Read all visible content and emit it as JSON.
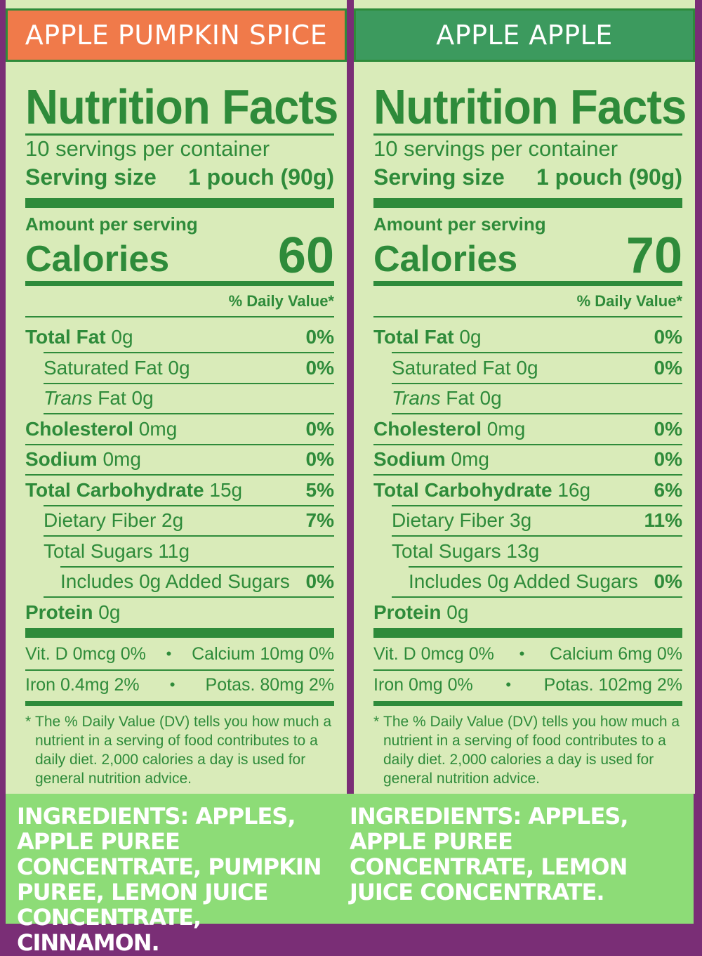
{
  "colors": {
    "background": "#7a2e76",
    "panel": "#d9ebb9",
    "label_green": "#2e8b3a",
    "left_banner": "#f07a4a",
    "right_banner": "#3c9a5e",
    "ingredients_bg": "#8ddc77"
  },
  "left": {
    "banner": "APPLE PUMPKIN SPICE",
    "title": "Nutrition Facts",
    "servings": "10 servings per container",
    "serving_size_label": "Serving size",
    "serving_size_value": "1 pouch (90g)",
    "amount_per_serving": "Amount per serving",
    "calories_label": "Calories",
    "calories_value": "60",
    "dv_header": "% Daily Value*",
    "rows": [
      {
        "bold": "Total Fat",
        "rest": " 0g",
        "pct": "0%"
      },
      {
        "plain": "Saturated Fat 0g",
        "pct": "0%"
      },
      {
        "italic": "Trans",
        "rest": " Fat 0g",
        "pct": ""
      },
      {
        "bold": "Cholesterol",
        "rest": " 0mg",
        "pct": "0%"
      },
      {
        "bold": "Sodium",
        "rest": " 0mg",
        "pct": "0%"
      },
      {
        "bold": "Total Carbohydrate",
        "rest": " 15g",
        "pct": "5%"
      },
      {
        "plain": "Dietary Fiber 2g",
        "pct": "7%"
      },
      {
        "plain": "Total Sugars 11g",
        "pct": ""
      },
      {
        "plain": "Includes 0g Added Sugars",
        "pct": "0%"
      },
      {
        "bold": "Protein",
        "rest": " 0g",
        "pct": ""
      }
    ],
    "vit_row1_left": "Vit. D 0mcg 0%",
    "vit_row1_right": "Calcium 10mg 0%",
    "vit_row2_left": "Iron 0.4mg 2%",
    "vit_row2_right": "Potas. 80mg 2%",
    "bullet": "•",
    "footnote_mark": "*",
    "footnote": "The % Daily Value (DV) tells you how much a nutrient in a serving of food contributes to a daily diet. 2,000 calories a day is used for general nutrition advice.",
    "ingredients": "INGREDIENTS: APPLES, APPLE PUREE CONCENTRATE, PUMPKIN PUREE, LEMON JUICE CONCENTRATE, CINNAMON."
  },
  "right": {
    "banner": "APPLE APPLE",
    "title": "Nutrition Facts",
    "servings": "10 servings per container",
    "serving_size_label": "Serving size",
    "serving_size_value": "1 pouch (90g)",
    "amount_per_serving": "Amount per serving",
    "calories_label": "Calories",
    "calories_value": "70",
    "dv_header": "% Daily Value*",
    "rows": [
      {
        "bold": "Total Fat",
        "rest": " 0g",
        "pct": "0%"
      },
      {
        "plain": "Saturated Fat 0g",
        "pct": "0%"
      },
      {
        "italic": "Trans",
        "rest": " Fat 0g",
        "pct": ""
      },
      {
        "bold": "Cholesterol",
        "rest": " 0mg",
        "pct": "0%"
      },
      {
        "bold": "Sodium",
        "rest": " 0mg",
        "pct": "0%"
      },
      {
        "bold": "Total Carbohydrate",
        "rest": " 16g",
        "pct": "6%"
      },
      {
        "plain": "Dietary Fiber 3g",
        "pct": "11%"
      },
      {
        "plain": "Total Sugars 13g",
        "pct": ""
      },
      {
        "plain": "Includes 0g Added Sugars",
        "pct": "0%"
      },
      {
        "bold": "Protein",
        "rest": " 0g",
        "pct": ""
      }
    ],
    "vit_row1_left": "Vit. D 0mcg 0%",
    "vit_row1_right": "Calcium 6mg 0%",
    "vit_row2_left": "Iron 0mg 0%",
    "vit_row2_right": "Potas. 102mg 2%",
    "bullet": "•",
    "footnote_mark": "*",
    "footnote": "The % Daily Value (DV) tells you how much a nutrient in a serving of food contributes to a daily diet. 2,000 calories a day is used for general nutrition advice.",
    "ingredients": "INGREDIENTS: APPLES, APPLE PUREE CONCENTRATE, LEMON JUICE CONCENTRATE."
  }
}
